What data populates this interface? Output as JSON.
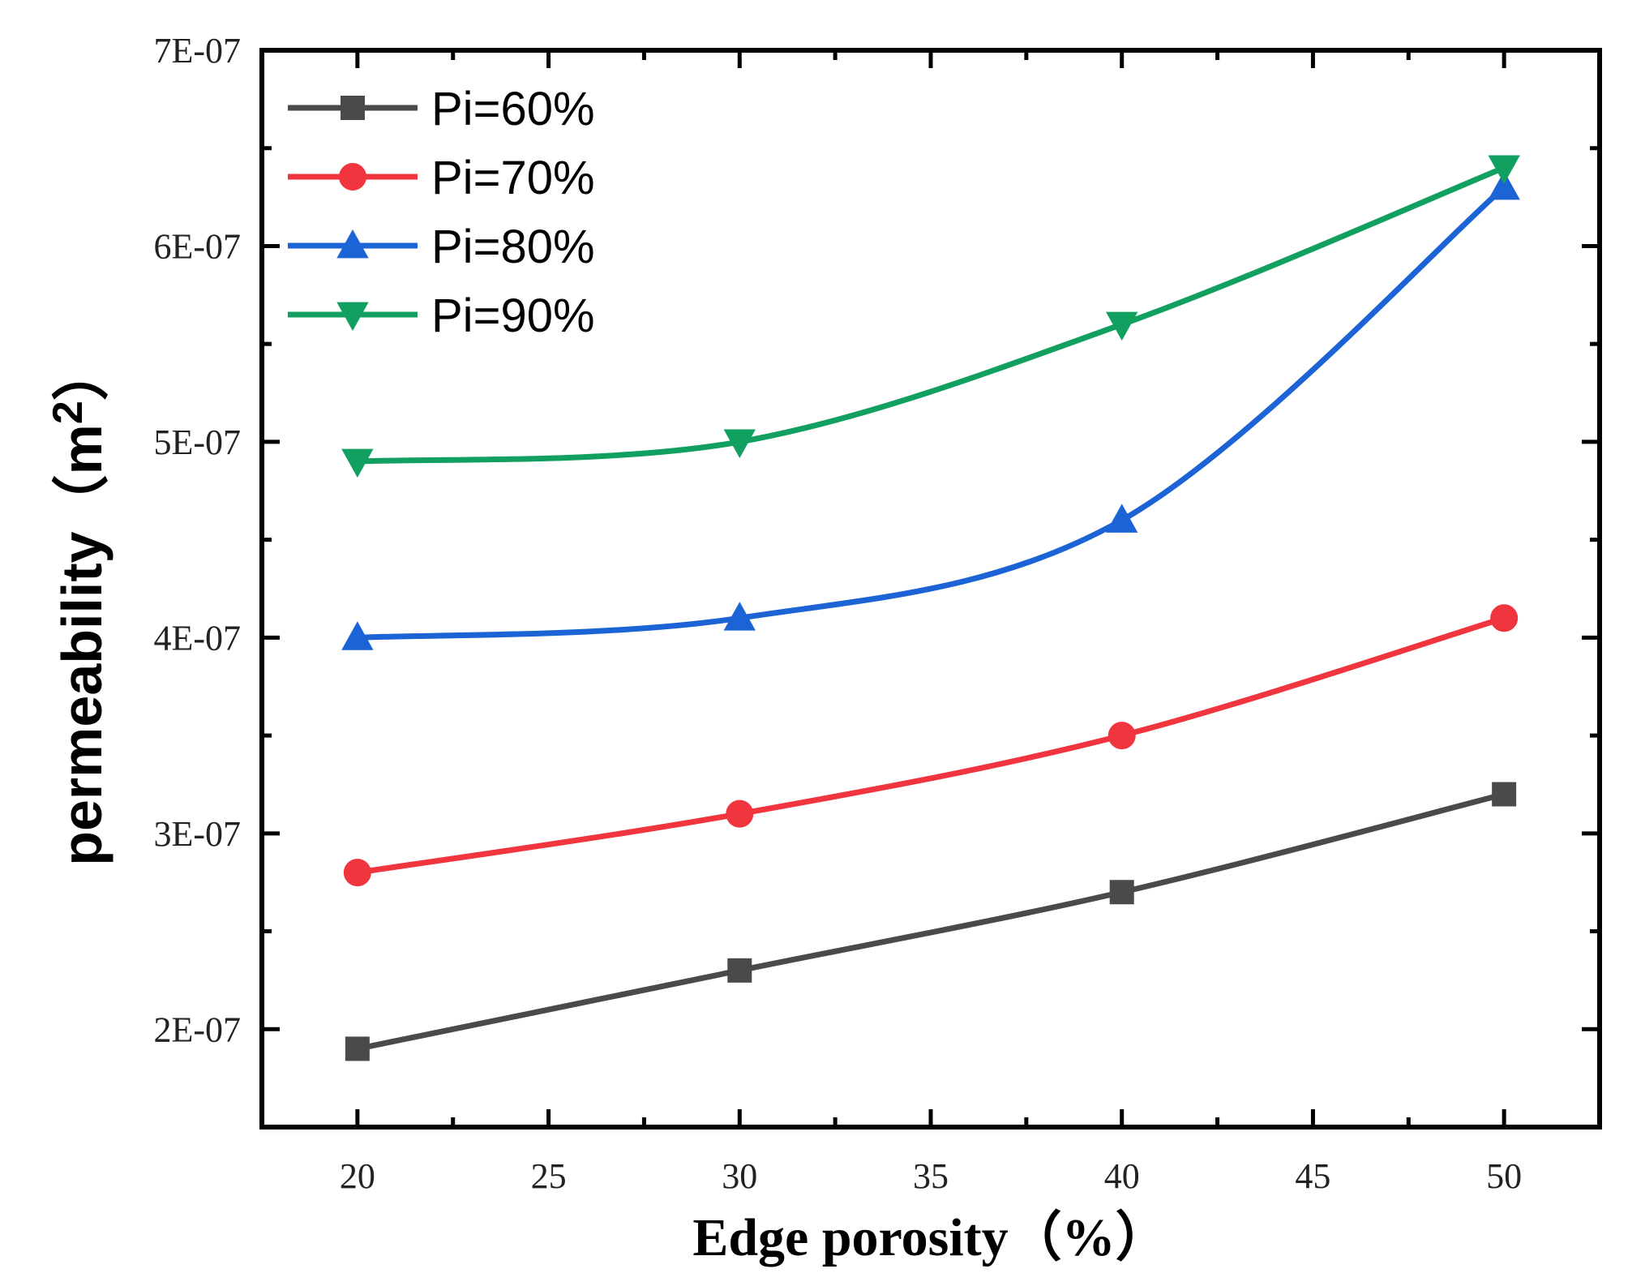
{
  "chart_data": {
    "type": "line",
    "title": "",
    "xlabel": "Edge porosity（%）",
    "ylabel_main": "permeability（m",
    "ylabel_sup": "2",
    "ylabel_end": "）",
    "xlim": [
      17.5,
      52.5
    ],
    "ylim": [
      1.5e-07,
      7e-07
    ],
    "x_ticks": [
      20,
      25,
      30,
      35,
      40,
      45,
      50
    ],
    "x_tick_labels": [
      "20",
      "25",
      "30",
      "35",
      "40",
      "45",
      "50"
    ],
    "y_ticks": [
      2e-07,
      3e-07,
      4e-07,
      5e-07,
      6e-07,
      7e-07
    ],
    "y_tick_labels": [
      "2E-07",
      "3E-07",
      "4E-07",
      "5E-07",
      "6E-07",
      "7E-07"
    ],
    "legend_position": "top-left",
    "x": [
      20,
      30,
      40,
      50
    ],
    "series": [
      {
        "name": "Pi=60%",
        "values": [
          1.9e-07,
          2.3e-07,
          2.7e-07,
          3.2e-07
        ],
        "color": "#4a4a4a",
        "marker": "square"
      },
      {
        "name": "Pi=70%",
        "values": [
          2.8e-07,
          3.1e-07,
          3.5e-07,
          4.1e-07
        ],
        "color": "#f0353f",
        "marker": "circle"
      },
      {
        "name": "Pi=80%",
        "values": [
          4e-07,
          4.1e-07,
          4.6e-07,
          6.3e-07
        ],
        "color": "#1c64d6",
        "marker": "triangle-up"
      },
      {
        "name": "Pi=90%",
        "values": [
          4.9e-07,
          5e-07,
          5.6e-07,
          6.4e-07
        ],
        "color": "#12a060",
        "marker": "triangle-down"
      }
    ]
  }
}
